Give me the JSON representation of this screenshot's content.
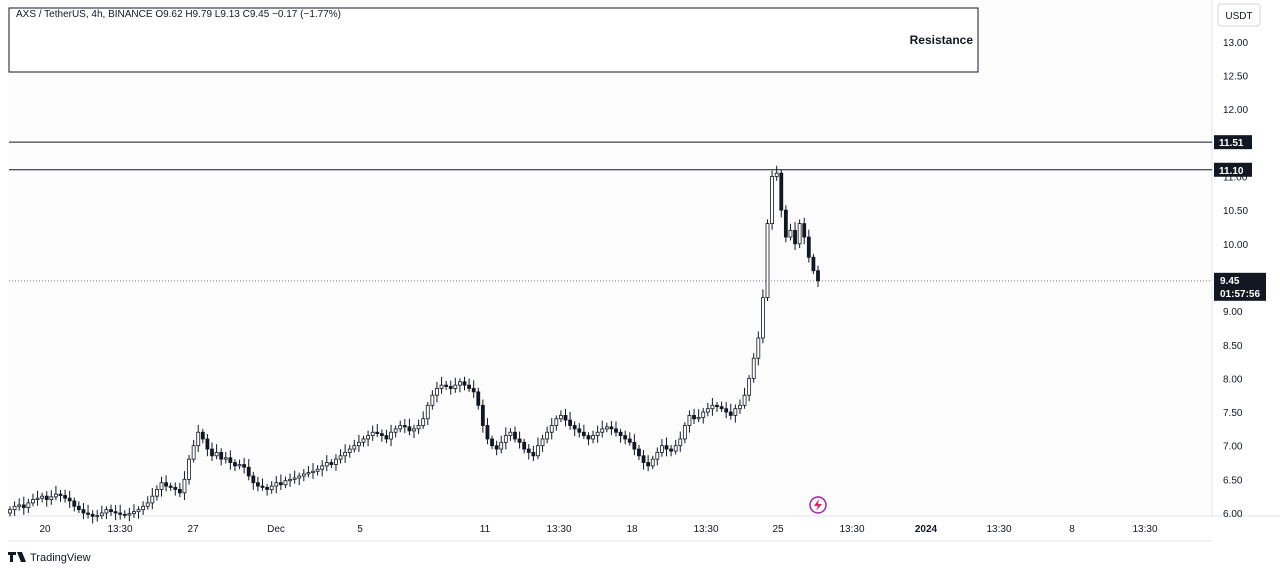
{
  "legend": "AXS / TetherUS, 4h, BINANCE  O9.62  H9.79  L9.13  C9.45  −0.17 (−1.77%)",
  "brand": "TradingView",
  "chart_data": {
    "type": "candlestick",
    "symbol": "AXS / TetherUS",
    "interval": "4h",
    "exchange": "BINANCE",
    "last_bar": {
      "open": 9.62,
      "high": 9.79,
      "low": 9.13,
      "close": 9.45,
      "change": -0.17,
      "change_pct": -1.77
    },
    "currency": "USDT",
    "y_ticks": [
      "6.00",
      "6.50",
      "7.00",
      "7.50",
      "8.00",
      "8.50",
      "9.00",
      "10.00",
      "10.50",
      "11.00",
      "12.00",
      "12.50",
      "13.00"
    ],
    "ylim": [
      6.0,
      13.5
    ],
    "x_ticks": [
      {
        "label": "20",
        "bold": false
      },
      {
        "label": "13:30",
        "bold": false
      },
      {
        "label": "27",
        "bold": false
      },
      {
        "label": "Dec",
        "bold": false
      },
      {
        "label": "5",
        "bold": false
      },
      {
        "label": "11",
        "bold": false
      },
      {
        "label": "13:30",
        "bold": false
      },
      {
        "label": "18",
        "bold": false
      },
      {
        "label": "13:30",
        "bold": false
      },
      {
        "label": "25",
        "bold": false
      },
      {
        "label": "13:30",
        "bold": false
      },
      {
        "label": "2024",
        "bold": true
      },
      {
        "label": "13:30",
        "bold": false
      },
      {
        "label": "8",
        "bold": false
      },
      {
        "label": "13:30",
        "bold": false
      }
    ],
    "price_badges": [
      {
        "label": "11.51",
        "value": 11.51
      },
      {
        "label": "11.10",
        "value": 11.1
      }
    ],
    "current_price": {
      "label": "9.45",
      "countdown": "01:57:56",
      "value": 9.45
    },
    "resistance_zone": {
      "label": "Resistance",
      "from": 12.53,
      "to": 13.5
    },
    "horizontal_lines": [
      11.51,
      11.1
    ],
    "close_series": [
      6.05,
      6.1,
      6.12,
      6.08,
      6.15,
      6.2,
      6.22,
      6.25,
      6.2,
      6.24,
      6.28,
      6.26,
      6.22,
      6.18,
      6.1,
      6.05,
      6.0,
      5.98,
      5.95,
      5.96,
      6.0,
      6.05,
      6.02,
      6.0,
      5.98,
      5.97,
      5.99,
      6.02,
      6.05,
      6.1,
      6.15,
      6.25,
      6.35,
      6.45,
      6.4,
      6.38,
      6.35,
      6.3,
      6.5,
      6.8,
      7.0,
      7.2,
      7.1,
      6.95,
      6.85,
      6.9,
      6.8,
      6.82,
      6.75,
      6.7,
      6.72,
      6.68,
      6.55,
      6.45,
      6.4,
      6.38,
      6.35,
      6.4,
      6.45,
      6.42,
      6.48,
      6.5,
      6.52,
      6.55,
      6.58,
      6.6,
      6.62,
      6.65,
      6.7,
      6.75,
      6.72,
      6.8,
      6.85,
      6.9,
      6.95,
      7.0,
      7.05,
      7.1,
      7.15,
      7.2,
      7.18,
      7.15,
      7.1,
      7.2,
      7.25,
      7.3,
      7.28,
      7.22,
      7.25,
      7.3,
      7.4,
      7.6,
      7.75,
      7.85,
      7.9,
      7.88,
      7.85,
      7.9,
      7.95,
      7.9,
      7.85,
      7.8,
      7.6,
      7.3,
      7.1,
      7.0,
      6.95,
      7.05,
      7.15,
      7.2,
      7.1,
      7.05,
      6.95,
      6.9,
      6.85,
      7.0,
      7.1,
      7.2,
      7.3,
      7.4,
      7.45,
      7.38,
      7.3,
      7.25,
      7.2,
      7.15,
      7.1,
      7.15,
      7.2,
      7.25,
      7.28,
      7.25,
      7.2,
      7.15,
      7.1,
      7.05,
      6.95,
      6.85,
      6.75,
      6.7,
      6.8,
      6.9,
      7.0,
      6.95,
      6.92,
      7.0,
      7.1,
      7.3,
      7.45,
      7.4,
      7.42,
      7.5,
      7.55,
      7.6,
      7.58,
      7.55,
      7.5,
      7.45,
      7.55,
      7.6,
      7.75,
      8.0,
      8.3,
      8.6,
      9.2,
      10.3,
      11.0,
      11.05,
      10.5,
      10.1,
      10.2,
      10.0,
      10.3,
      10.1,
      9.8,
      9.6,
      9.45
    ]
  }
}
